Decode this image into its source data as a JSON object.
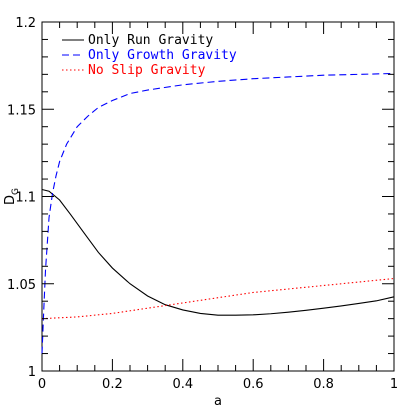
{
  "chart_data": {
    "type": "line",
    "xlabel": "a",
    "ylabel": "D",
    "ylabel_sub": "G",
    "xlim": [
      0,
      1
    ],
    "ylim": [
      1,
      1.2
    ],
    "x_ticks": [
      "0",
      "0.2",
      "0.4",
      "0.6",
      "0.8",
      "1"
    ],
    "y_ticks": [
      "1",
      "1.05",
      "1.1",
      "1.15",
      "1.2"
    ],
    "grid": false,
    "legend_position": "top-left",
    "series": [
      {
        "name": "Only Run Gravity",
        "color": "#000000",
        "dash": "solid",
        "x": [
          0.0,
          0.02,
          0.05,
          0.08,
          0.12,
          0.16,
          0.2,
          0.25,
          0.3,
          0.35,
          0.4,
          0.45,
          0.5,
          0.55,
          0.6,
          0.65,
          0.7,
          0.75,
          0.8,
          0.85,
          0.9,
          0.95,
          1.0
        ],
        "y": [
          1.104,
          1.103,
          1.098,
          1.09,
          1.079,
          1.068,
          1.059,
          1.05,
          1.043,
          1.038,
          1.035,
          1.033,
          1.032,
          1.032,
          1.0322,
          1.0328,
          1.0337,
          1.0348,
          1.036,
          1.0373,
          1.0387,
          1.0402,
          1.0425
        ]
      },
      {
        "name": "Only Growth Gravity",
        "color": "#0000ff",
        "dash": "dashed",
        "x": [
          0.0,
          0.005,
          0.01,
          0.02,
          0.03,
          0.04,
          0.05,
          0.07,
          0.1,
          0.13,
          0.16,
          0.2,
          0.25,
          0.3,
          0.4,
          0.5,
          0.6,
          0.7,
          0.8,
          0.9,
          1.0
        ],
        "y": [
          1.01,
          1.035,
          1.058,
          1.088,
          1.102,
          1.112,
          1.12,
          1.13,
          1.14,
          1.146,
          1.151,
          1.155,
          1.159,
          1.161,
          1.164,
          1.166,
          1.1675,
          1.1685,
          1.1695,
          1.17,
          1.1705
        ]
      },
      {
        "name": "No Slip Gravity",
        "color": "#ff0000",
        "dash": "dotted",
        "x": [
          0.0,
          0.1,
          0.2,
          0.3,
          0.4,
          0.5,
          0.6,
          0.7,
          0.8,
          0.9,
          1.0
        ],
        "y": [
          1.03,
          1.031,
          1.033,
          1.036,
          1.039,
          1.042,
          1.045,
          1.047,
          1.049,
          1.051,
          1.053
        ]
      }
    ]
  }
}
